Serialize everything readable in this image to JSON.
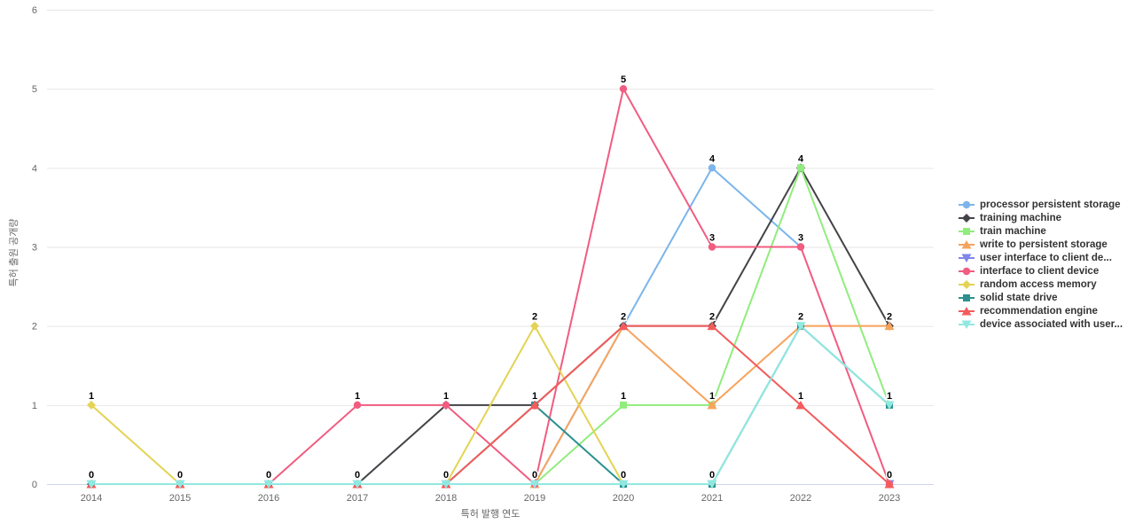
{
  "colors": {
    "background": "#ffffff",
    "grid_line": "#e6e6e6",
    "axis_line": "#ccd6eb",
    "axis_text": "#666666",
    "legend_text": "#333333",
    "data_label_text": "#000000"
  },
  "chart_data": {
    "type": "line",
    "title": "",
    "xlabel": "특허 발행 연도",
    "ylabel": "특허 출원 공개량",
    "categories": [
      "2014",
      "2015",
      "2016",
      "2017",
      "2018",
      "2019",
      "2020",
      "2021",
      "2022",
      "2023"
    ],
    "ylim": [
      0,
      6
    ],
    "yticks": [
      0,
      1,
      2,
      3,
      4,
      5,
      6
    ],
    "grid": true,
    "legend_position": "right",
    "data_labels": true,
    "series": [
      {
        "name": "processor persistent storage",
        "color": "#7cb5ec",
        "marker": "circle",
        "values": [
          0,
          0,
          0,
          0,
          0,
          0,
          2,
          4,
          3,
          null
        ]
      },
      {
        "name": "training machine",
        "color": "#434348",
        "marker": "diamond",
        "values": [
          0,
          0,
          0,
          0,
          1,
          1,
          2,
          2,
          4,
          2
        ]
      },
      {
        "name": "train machine",
        "color": "#90ed7d",
        "marker": "square",
        "values": [
          0,
          0,
          0,
          0,
          0,
          0,
          1,
          1,
          4,
          1
        ]
      },
      {
        "name": "write to persistent storage",
        "color": "#f7a35c",
        "marker": "triangle",
        "values": [
          0,
          0,
          0,
          0,
          0,
          0,
          2,
          1,
          2,
          2
        ]
      },
      {
        "name": "user interface to client de...",
        "color": "#8085e9",
        "marker": "triangle-down",
        "values": [
          0,
          0,
          0,
          0,
          0,
          0,
          0,
          0,
          null,
          0
        ]
      },
      {
        "name": "interface to client device",
        "color": "#f15c80",
        "marker": "circle",
        "values": [
          0,
          0,
          0,
          1,
          1,
          0,
          5,
          3,
          3,
          0
        ]
      },
      {
        "name": "random access memory",
        "color": "#e4d354",
        "marker": "diamond",
        "values": [
          1,
          0,
          0,
          0,
          0,
          2,
          0,
          0,
          null,
          null
        ]
      },
      {
        "name": "solid state drive",
        "color": "#2b908f",
        "marker": "square",
        "values": [
          0,
          0,
          0,
          0,
          0,
          1,
          0,
          0,
          2,
          1
        ]
      },
      {
        "name": "recommendation engine",
        "color": "#f45b5b",
        "marker": "triangle",
        "values": [
          0,
          0,
          0,
          0,
          0,
          1,
          2,
          2,
          1,
          0
        ]
      },
      {
        "name": "device associated with user...",
        "color": "#91e8e1",
        "marker": "triangle-down",
        "values": [
          0,
          0,
          0,
          0,
          0,
          0,
          0,
          0,
          2,
          1
        ]
      }
    ]
  }
}
